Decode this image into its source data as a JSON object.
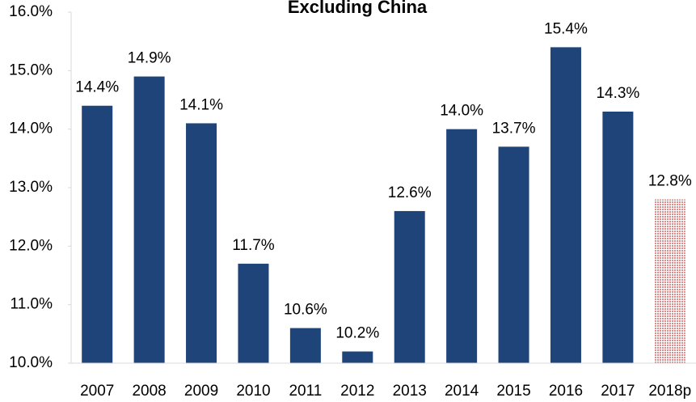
{
  "chart_data": {
    "type": "bar",
    "title": "Excluding China",
    "categories": [
      "2007",
      "2008",
      "2009",
      "2010",
      "2011",
      "2012",
      "2013",
      "2014",
      "2015",
      "2016",
      "2017",
      "2018p"
    ],
    "values": [
      14.4,
      14.9,
      14.1,
      11.7,
      10.6,
      10.2,
      12.6,
      14.0,
      13.7,
      15.4,
      14.3,
      12.8
    ],
    "value_labels": [
      "14.4%",
      "14.9%",
      "14.1%",
      "11.7%",
      "10.6%",
      "10.2%",
      "12.6%",
      "14.0%",
      "13.7%",
      "15.4%",
      "14.3%",
      "12.8%"
    ],
    "colors": [
      "#1f4479",
      "#1f4479",
      "#1f4479",
      "#1f4479",
      "#1f4479",
      "#1f4479",
      "#1f4479",
      "#1f4479",
      "#1f4479",
      "#1f4479",
      "#1f4479",
      "#e08a8a"
    ],
    "patterns": [
      "solid",
      "solid",
      "solid",
      "solid",
      "solid",
      "solid",
      "solid",
      "solid",
      "solid",
      "solid",
      "solid",
      "hatch"
    ],
    "ylim": [
      10,
      16
    ],
    "yticks": [
      {
        "value": 10,
        "label": "10.0%"
      },
      {
        "value": 11,
        "label": "11.0%"
      },
      {
        "value": 12,
        "label": "12.0%"
      },
      {
        "value": 13,
        "label": "13.0%"
      },
      {
        "value": 14,
        "label": "14.0%"
      },
      {
        "value": 15,
        "label": "15.0%"
      },
      {
        "value": 16,
        "label": "16.0%"
      }
    ],
    "grid": false
  }
}
